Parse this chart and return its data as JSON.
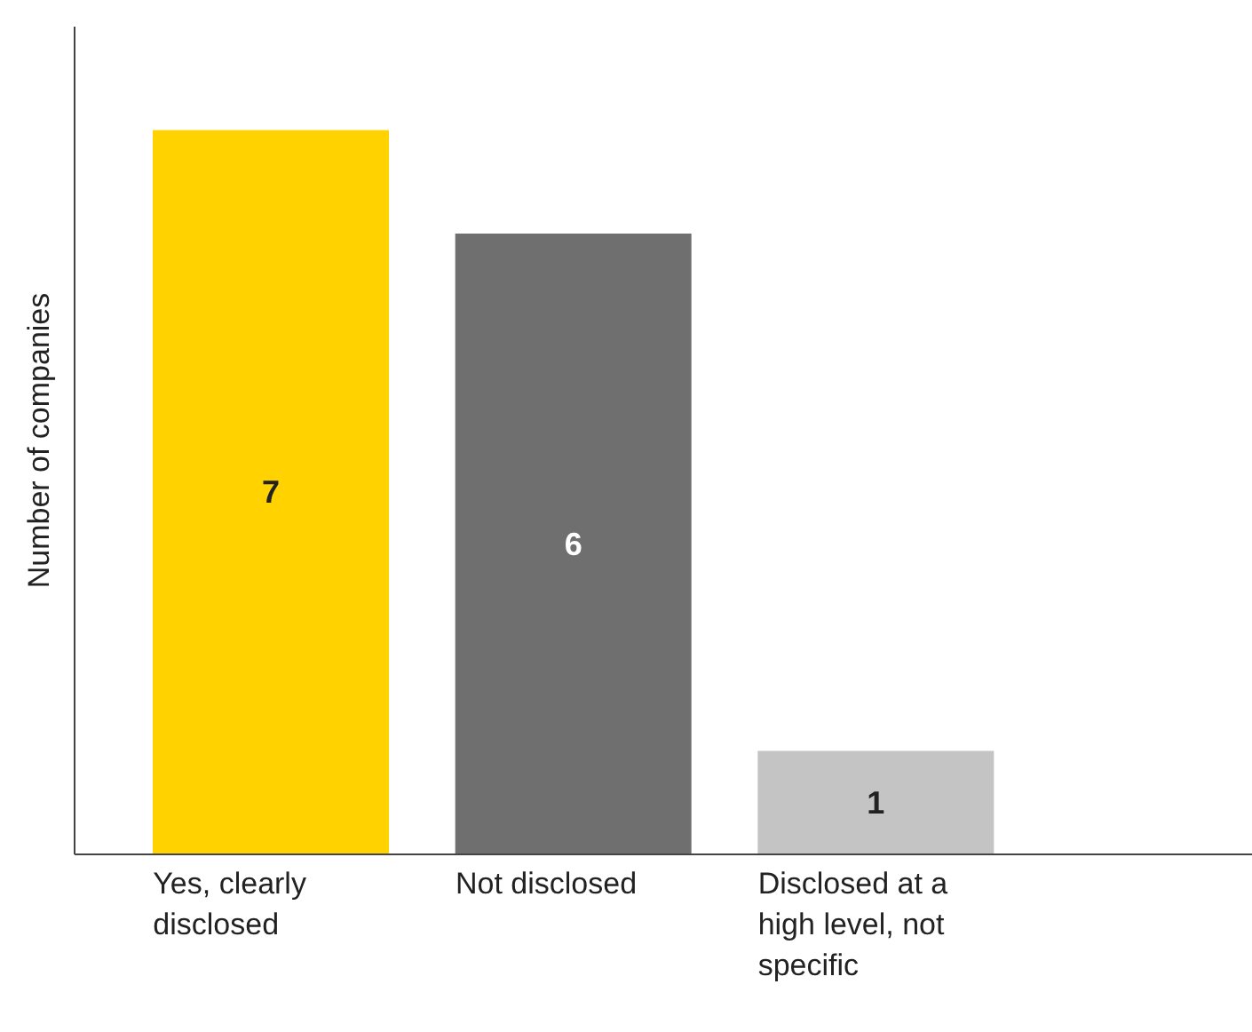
{
  "chart_data": {
    "type": "bar",
    "categories": [
      "Yes, clearly disclosed",
      "Not disclosed",
      "Disclosed at a high level, not specific"
    ],
    "values": [
      7,
      6,
      1
    ],
    "colors": [
      "#ffd200",
      "#6f6f70",
      "#c4c4c4"
    ],
    "ylabel": "Number of companies",
    "ylim": [
      0,
      8
    ],
    "tick_labels": "x",
    "data_labels": true,
    "grid": false,
    "legend": false
  }
}
